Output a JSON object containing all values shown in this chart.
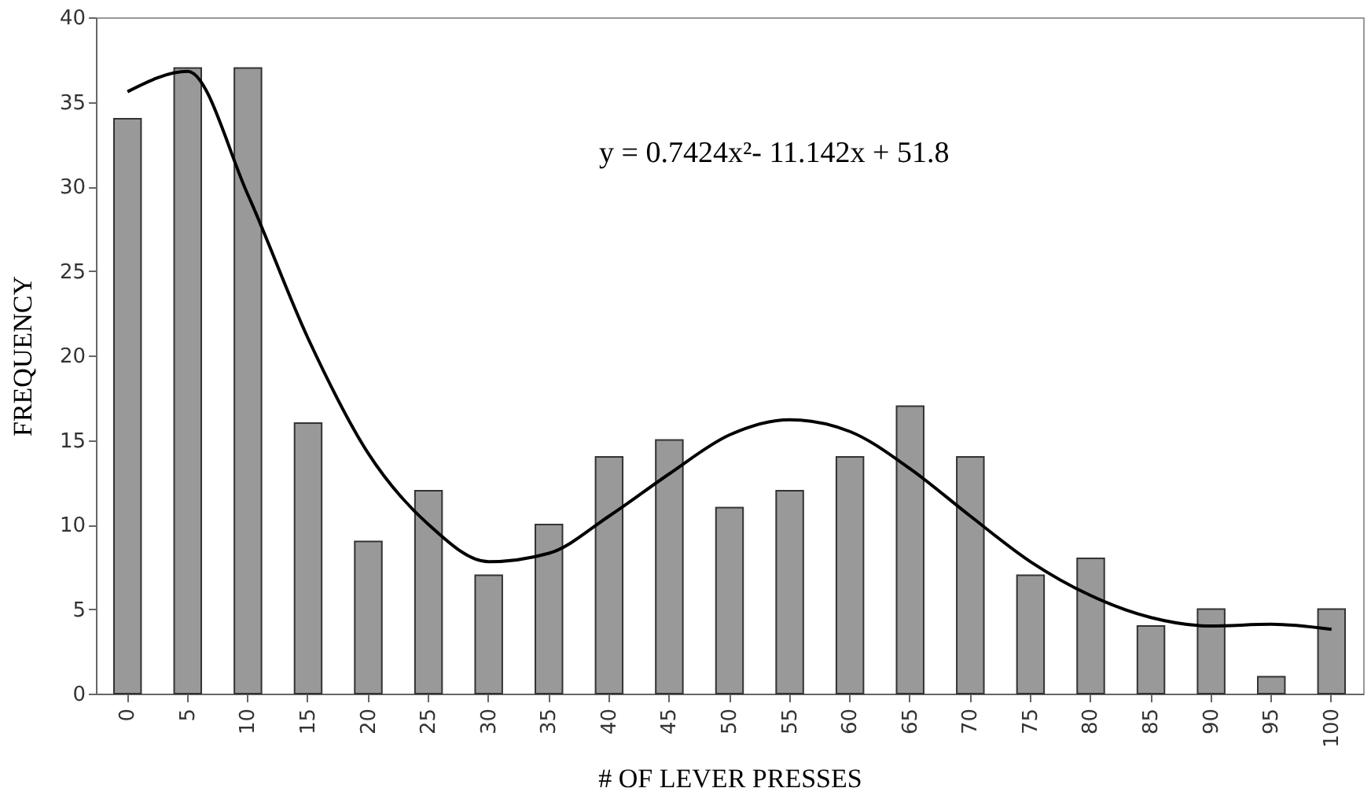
{
  "chart_data": {
    "type": "bar",
    "xlabel": "# OF LEVER PRESSES",
    "ylabel": "FREQUENCY",
    "categories": [
      "0",
      "5",
      "10",
      "15",
      "20",
      "25",
      "30",
      "35",
      "40",
      "45",
      "50",
      "55",
      "60",
      "65",
      "70",
      "75",
      "80",
      "85",
      "90",
      "95",
      "100"
    ],
    "series": [
      {
        "color": "#999999",
        "values": [
          34,
          37,
          37,
          16,
          9,
          12,
          7,
          10,
          14,
          15,
          11,
          12,
          14,
          17,
          14,
          7,
          8,
          4,
          5,
          1,
          5
        ]
      },
      {
        "type": "line",
        "color": "#000000",
        "x": [
          "0",
          "5",
          "10",
          "15",
          "20",
          "25",
          "30",
          "35",
          "40",
          "45",
          "50",
          "55",
          "60",
          "65",
          "70",
          "75",
          "80",
          "85",
          "90",
          "95",
          "100"
        ],
        "values": [
          35.6,
          36.8,
          29.5,
          21,
          14.2,
          10,
          7.8,
          8.3,
          10.5,
          13,
          15.3,
          16.2,
          15.5,
          13.3,
          10.5,
          7.8,
          5.8,
          4.5,
          4,
          4.1,
          3.8
        ]
      }
    ],
    "ylim": [
      0,
      40
    ],
    "yticks": [
      0,
      5,
      10,
      15,
      20,
      25,
      30,
      35,
      40
    ],
    "grid": false,
    "line_style": "solid",
    "marker": "none",
    "annotations": [
      "y = 0.7424x²- 11.142x + 51.8"
    ]
  }
}
